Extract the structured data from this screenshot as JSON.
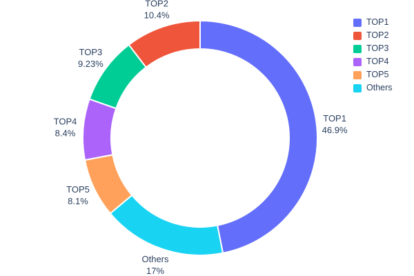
{
  "chart_data": {
    "type": "pie",
    "subtype": "donut",
    "title": "",
    "hole": 0.76,
    "labels": [
      "TOP1",
      "TOP2",
      "TOP3",
      "TOP4",
      "TOP5",
      "Others"
    ],
    "values": [
      46.9,
      10.4,
      9.23,
      8.4,
      8.1,
      17
    ],
    "display_percents": [
      "46.9%",
      "10.4%",
      "9.23%",
      "8.4%",
      "8.1%",
      "17%"
    ],
    "colors": [
      "#636efa",
      "#ef553b",
      "#00cc96",
      "#ab63fa",
      "#ffa15a",
      "#19d3f3"
    ],
    "text_color": "#2a3f5f",
    "background_color": "#ffffff",
    "legend": {
      "position": "top-right",
      "entries": [
        "TOP1",
        "TOP2",
        "TOP3",
        "TOP4",
        "TOP5",
        "Others"
      ]
    },
    "layout_hints": {
      "labels_position": "outside",
      "largest_slice_clockwise_from_top": true,
      "remaining_slices_counterclockwise_from_top": true
    }
  }
}
